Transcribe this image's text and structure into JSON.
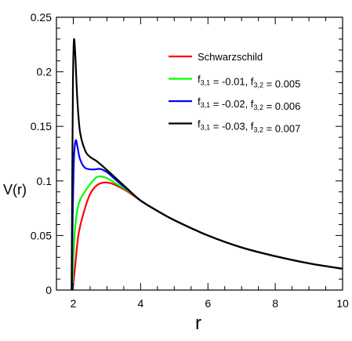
{
  "chart_data": {
    "type": "line",
    "title": "",
    "xlabel": "r",
    "ylabel": "V(r)",
    "xlim": [
      1.5,
      10
    ],
    "ylim": [
      0,
      0.25
    ],
    "xticks": [
      2,
      4,
      6,
      8,
      10
    ],
    "xtick_labels": [
      "2",
      "4",
      "6",
      "8",
      "10"
    ],
    "yticks": [
      0,
      0.05,
      0.1,
      0.15,
      0.2,
      0.25
    ],
    "ytick_labels": [
      "0",
      "0.05",
      "0.1",
      "0.15",
      "0.2",
      "0.25"
    ],
    "grid": false,
    "legend_position": "top-right",
    "series": [
      {
        "name": "Schwarzschild",
        "color": "#ff0000",
        "legend": [
          {
            "t": "Schwarzschild"
          }
        ],
        "points": [
          [
            1.98,
            0
          ],
          [
            2.05,
            0.02
          ],
          [
            2.15,
            0.05
          ],
          [
            2.3,
            0.07
          ],
          [
            2.5,
            0.088
          ],
          [
            2.7,
            0.096
          ],
          [
            2.9,
            0.0985
          ],
          [
            3.1,
            0.098
          ],
          [
            3.3,
            0.0955
          ],
          [
            3.6,
            0.0905
          ],
          [
            4.0,
            0.082
          ],
          [
            4.5,
            0.0725
          ],
          [
            5.0,
            0.064
          ],
          [
            6.0,
            0.05
          ],
          [
            7.0,
            0.039
          ],
          [
            8.0,
            0.031
          ],
          [
            9.0,
            0.0245
          ],
          [
            10.0,
            0.0195
          ]
        ]
      },
      {
        "name": "f3,1 = -0.01, f3,2 = 0.005",
        "color": "#00ff00",
        "legend": [
          {
            "t": "f"
          },
          {
            "t": "3,1",
            "sub": true
          },
          {
            "t": " = -0.01, f"
          },
          {
            "t": "3,2",
            "sub": true
          },
          {
            "t": " = 0.005"
          }
        ],
        "points": [
          [
            1.97,
            0
          ],
          [
            2.0,
            0.025
          ],
          [
            2.05,
            0.055
          ],
          [
            2.15,
            0.078
          ],
          [
            2.3,
            0.088
          ],
          [
            2.5,
            0.097
          ],
          [
            2.7,
            0.1035
          ],
          [
            2.85,
            0.104
          ],
          [
            3.0,
            0.1025
          ],
          [
            3.3,
            0.097
          ],
          [
            3.6,
            0.0915
          ],
          [
            4.0,
            0.082
          ],
          [
            4.5,
            0.0725
          ],
          [
            5.0,
            0.064
          ],
          [
            6.0,
            0.05
          ],
          [
            7.0,
            0.039
          ],
          [
            8.0,
            0.031
          ],
          [
            9.0,
            0.0245
          ],
          [
            10.0,
            0.0195
          ]
        ]
      },
      {
        "name": "f3,1 = -0.02, f3,2 = 0.006",
        "color": "#0000ff",
        "legend": [
          {
            "t": "f"
          },
          {
            "t": "3,1",
            "sub": true
          },
          {
            "t": " = -0.02, f"
          },
          {
            "t": "3,2",
            "sub": true
          },
          {
            "t": " = 0.006"
          }
        ],
        "points": [
          [
            1.96,
            0
          ],
          [
            1.98,
            0.06
          ],
          [
            2.02,
            0.12
          ],
          [
            2.07,
            0.137
          ],
          [
            2.12,
            0.132
          ],
          [
            2.2,
            0.12
          ],
          [
            2.35,
            0.112
          ],
          [
            2.6,
            0.1105
          ],
          [
            2.8,
            0.111
          ],
          [
            3.0,
            0.108
          ],
          [
            3.3,
            0.1
          ],
          [
            3.6,
            0.0925
          ],
          [
            4.0,
            0.082
          ],
          [
            4.5,
            0.0725
          ],
          [
            5.0,
            0.064
          ],
          [
            6.0,
            0.05
          ],
          [
            7.0,
            0.039
          ],
          [
            8.0,
            0.031
          ],
          [
            9.0,
            0.0245
          ],
          [
            10.0,
            0.0195
          ]
        ]
      },
      {
        "name": "f3,1 = -0.03, f3,2 = 0.007",
        "color": "#000000",
        "legend": [
          {
            "t": "f"
          },
          {
            "t": "3,1",
            "sub": true
          },
          {
            "t": " = -0.03, f"
          },
          {
            "t": "3,2",
            "sub": true
          },
          {
            "t": " = 0.007"
          }
        ],
        "points": [
          [
            1.95,
            0
          ],
          [
            1.97,
            0.1
          ],
          [
            1.99,
            0.19
          ],
          [
            2.02,
            0.229
          ],
          [
            2.06,
            0.215
          ],
          [
            2.12,
            0.175
          ],
          [
            2.2,
            0.145
          ],
          [
            2.35,
            0.128
          ],
          [
            2.5,
            0.122
          ],
          [
            2.7,
            0.118
          ],
          [
            3.0,
            0.11
          ],
          [
            3.3,
            0.1015
          ],
          [
            3.6,
            0.093
          ],
          [
            4.0,
            0.082
          ],
          [
            4.5,
            0.0725
          ],
          [
            5.0,
            0.064
          ],
          [
            6.0,
            0.05
          ],
          [
            7.0,
            0.039
          ],
          [
            8.0,
            0.031
          ],
          [
            9.0,
            0.0245
          ],
          [
            10.0,
            0.0195
          ]
        ]
      }
    ]
  }
}
